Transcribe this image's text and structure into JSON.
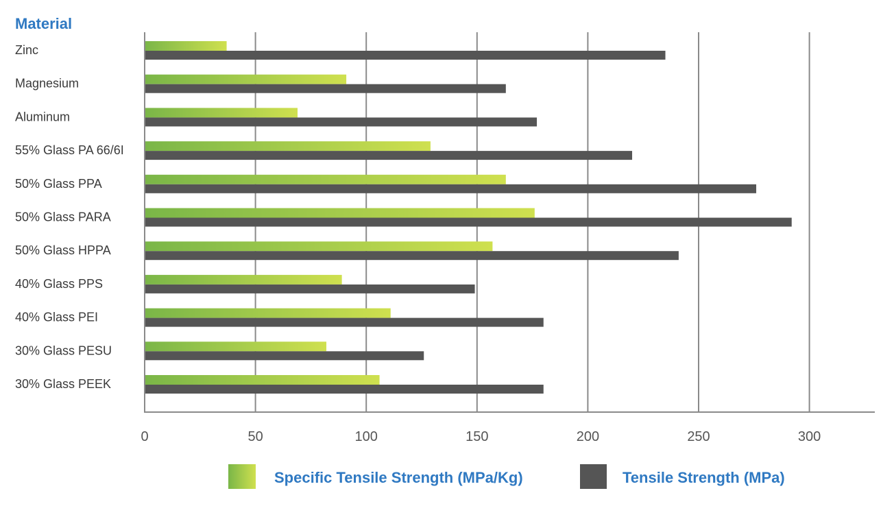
{
  "chart_data": {
    "type": "bar",
    "orientation": "horizontal",
    "title": "",
    "ylabel": "Material",
    "xlabel": "",
    "xlim": [
      0,
      330
    ],
    "xticks": [
      0,
      50,
      100,
      150,
      200,
      250,
      300
    ],
    "grid": true,
    "categories": [
      "Zinc",
      "Magnesium",
      "Aluminum",
      "55% Glass PA 66/6I",
      "50% Glass PPA",
      "50% Glass PARA",
      "50% Glass HPPA",
      "40% Glass PPS",
      "40% Glass PEI",
      "30% Glass PESU",
      "30% Glass PEEK"
    ],
    "series": [
      {
        "name": "Specific Tensile Strength (MPa/Kg)",
        "color_start": "#7ab648",
        "color_end": "#cfe04f",
        "values": [
          37,
          91,
          69,
          129,
          163,
          176,
          157,
          89,
          111,
          82,
          106
        ]
      },
      {
        "name": "Tensile Strength (MPa)",
        "color": "#555555",
        "values": [
          235,
          163,
          177,
          220,
          276,
          292,
          241,
          149,
          180,
          126,
          180
        ]
      }
    ],
    "legend_position": "bottom"
  }
}
